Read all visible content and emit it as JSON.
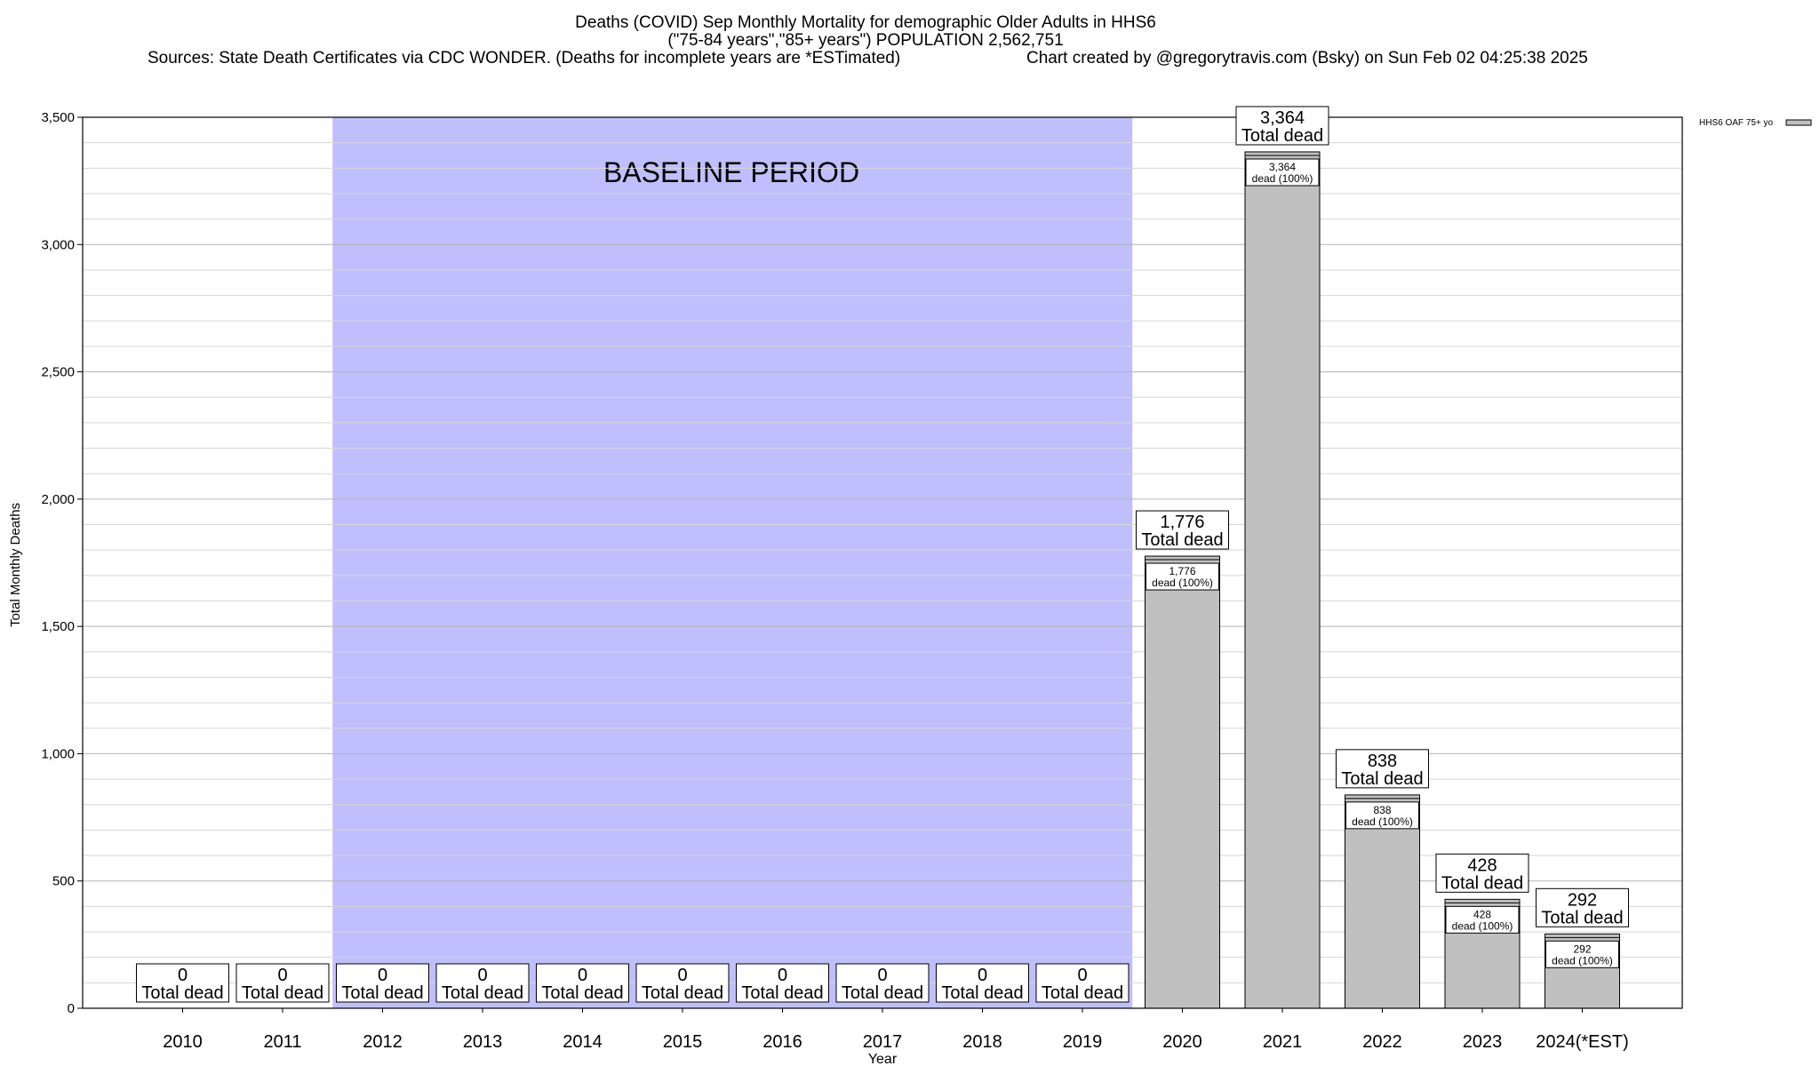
{
  "chart_data": {
    "type": "bar",
    "title_lines": [
      "Deaths (COVID) Sep Monthly Mortality for demographic Older Adults in HHS6",
      "(\"75-84 years\",\"85+ years\") POPULATION 2,562,751"
    ],
    "sources_text": "Sources: State Death Certificates via CDC WONDER. (Deaths for incomplete years are *ESTimated)",
    "credit_text": "Chart created by @gregorytravis.com (Bsky) on Sun Feb 02 04:25:38 2025",
    "xlabel": "Year",
    "ylabel": "Total Monthly Deaths",
    "ylim": [
      0,
      3500
    ],
    "y_ticks": [
      0,
      500,
      1000,
      1500,
      2000,
      2500,
      3000,
      3500
    ],
    "y_tick_labels": [
      "0",
      "500",
      "1,000",
      "1,500",
      "2,000",
      "2,500",
      "3,000",
      "3,500"
    ],
    "grid": true,
    "categories": [
      "2010",
      "2011",
      "2012",
      "2013",
      "2014",
      "2015",
      "2016",
      "2017",
      "2018",
      "2019",
      "2020",
      "2021",
      "2022",
      "2023",
      "2024(*EST)"
    ],
    "series": [
      {
        "name": "HHS6 OAF 75+ yo",
        "color": "#c0c0c0",
        "values": [
          0,
          0,
          0,
          0,
          0,
          0,
          0,
          0,
          0,
          0,
          1776,
          3364,
          838,
          428,
          292
        ]
      }
    ],
    "total_labels": [
      "0",
      "0",
      "0",
      "0",
      "0",
      "0",
      "0",
      "0",
      "0",
      "0",
      "1,776",
      "3,364",
      "838",
      "428",
      "292"
    ],
    "total_suffix": "Total dead",
    "inner_suffix": "dead (100%)",
    "baseline": {
      "label": "BASELINE PERIOD",
      "start": "2012",
      "end": "2019",
      "color": "#bfbffd"
    },
    "legend": {
      "position": "top-right",
      "entries": [
        "HHS6 OAF 75+ yo"
      ]
    }
  }
}
